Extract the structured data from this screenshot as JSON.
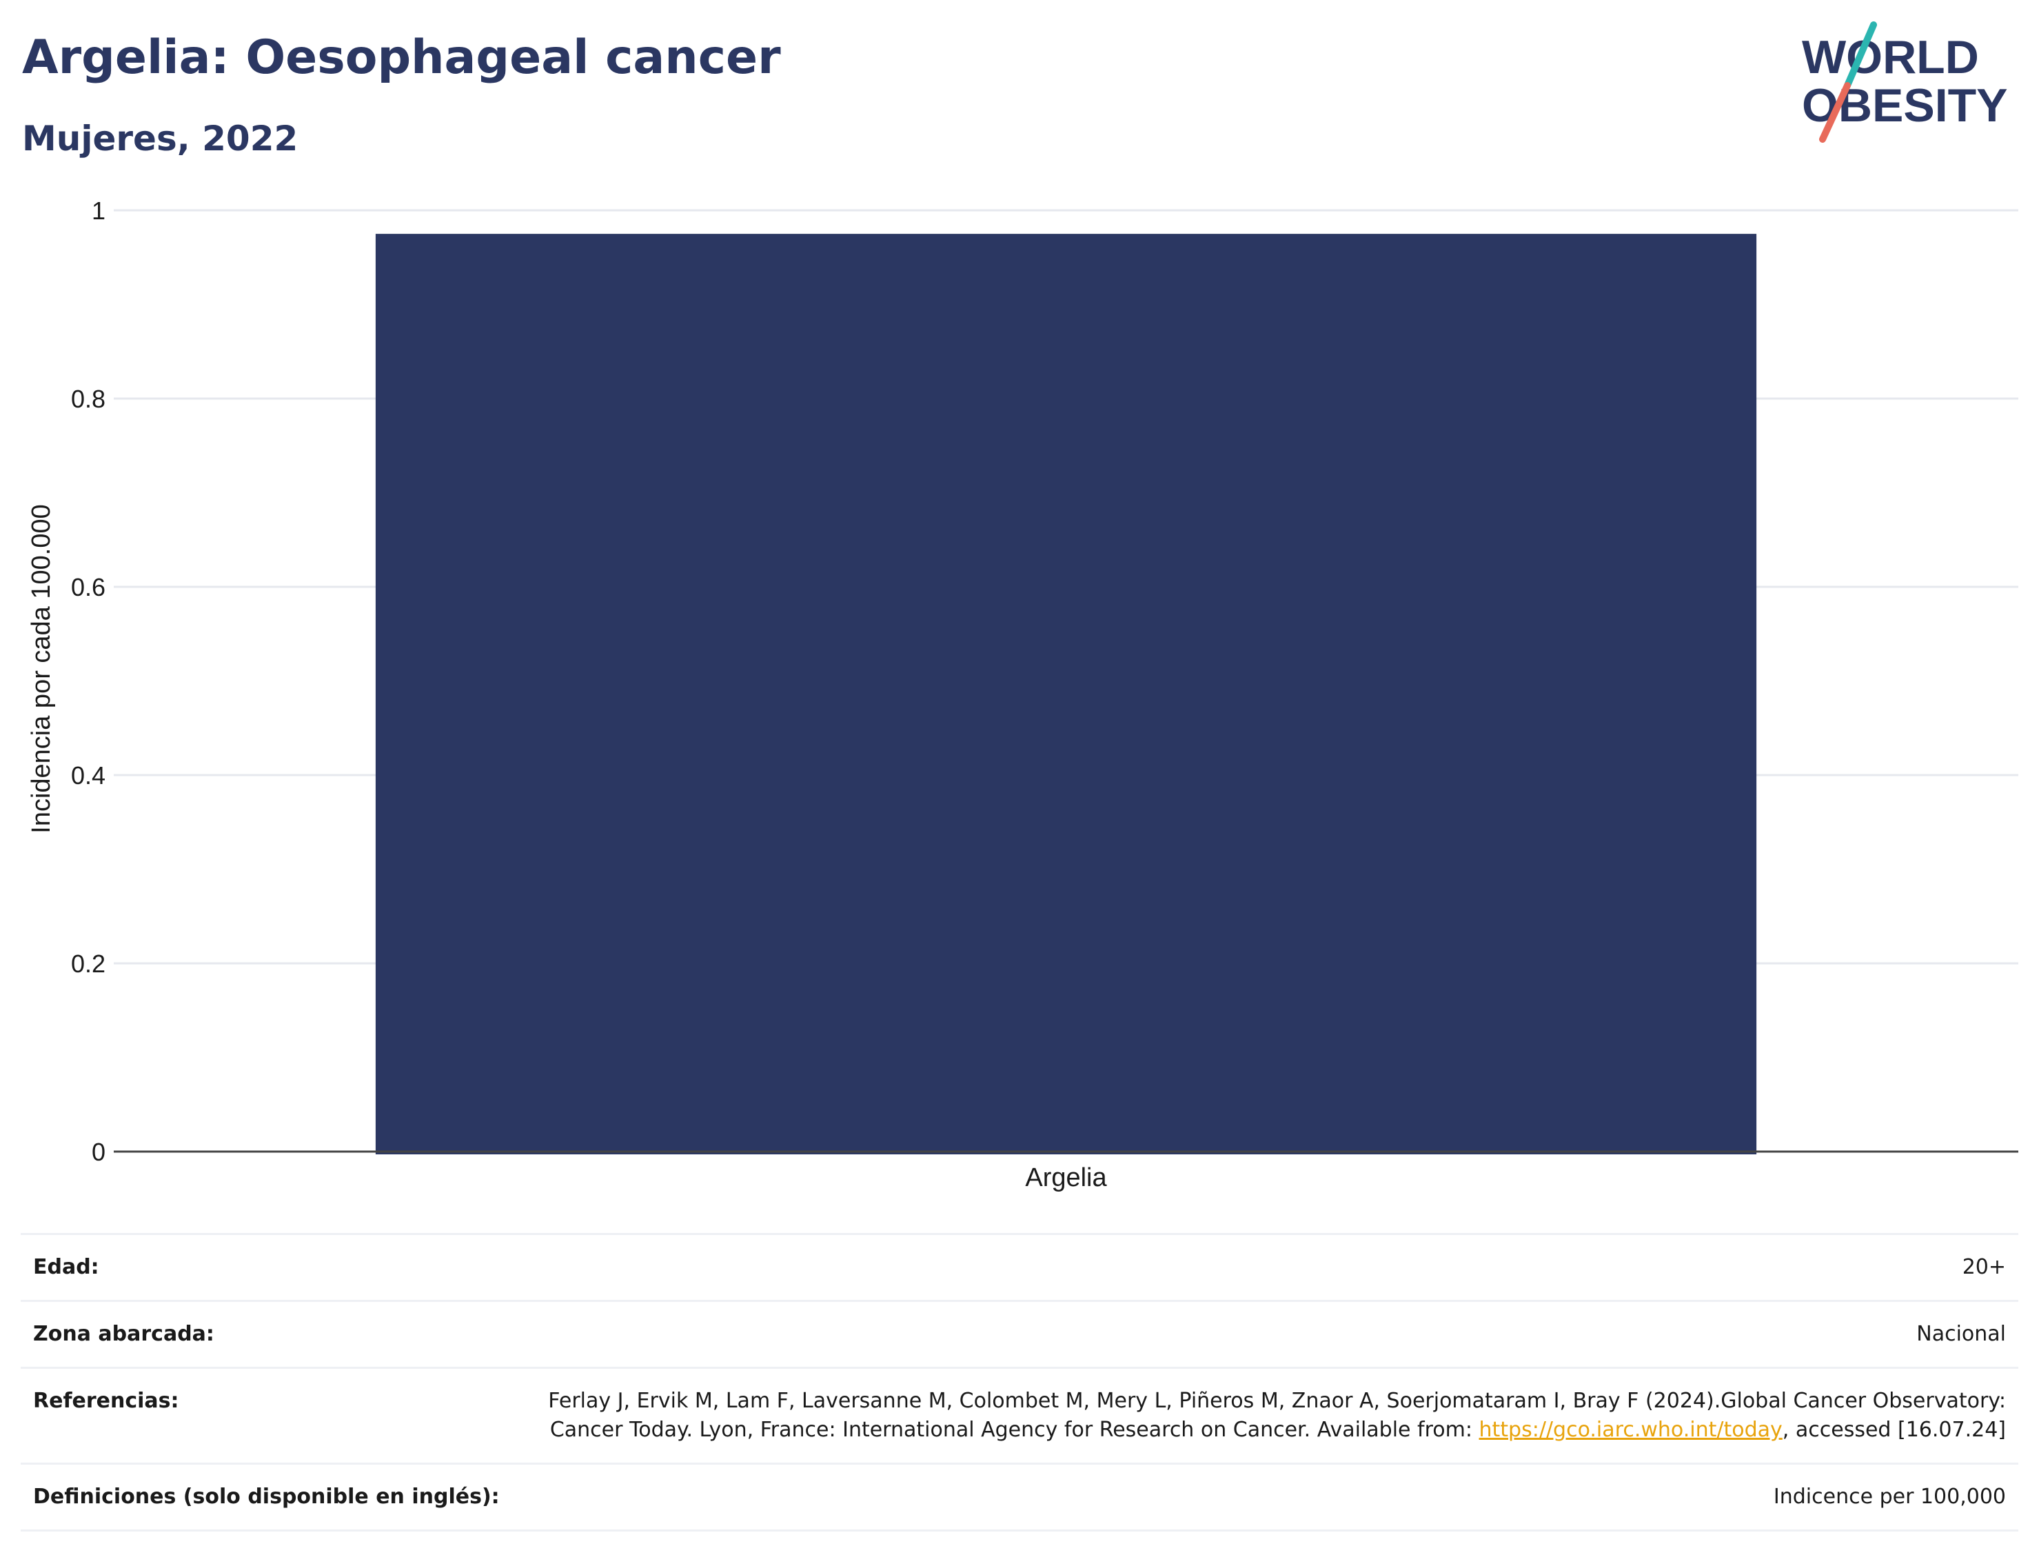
{
  "header": {
    "title": "Argelia: Oesophageal cancer",
    "subtitle": "Mujeres, 2022"
  },
  "logo": {
    "line1": "WORLD",
    "line2": "OBESITY",
    "colors": {
      "text": "#2b3762",
      "slash_top": "#2bb5b0",
      "slash_bottom": "#e86a5a"
    }
  },
  "chart_data": {
    "type": "bar",
    "categories": [
      "Argelia"
    ],
    "values": [
      0.975
    ],
    "title": "",
    "xlabel": "",
    "ylabel": "Incidencia por cada 100.000",
    "ylim": [
      0,
      1
    ],
    "yticks": [
      0,
      0.2,
      0.4,
      0.6,
      0.8,
      1
    ],
    "ytick_labels": [
      "0",
      "0.2",
      "0.4",
      "0.6",
      "0.8",
      "1"
    ],
    "grid": true,
    "bar_color": "#2b3762"
  },
  "meta": {
    "rows": [
      {
        "label": "Edad:",
        "value": "20+"
      },
      {
        "label": "Zona abarcada:",
        "value": "Nacional"
      },
      {
        "label": "Referencias:",
        "value_pre": "Ferlay J, Ervik M, Lam F, Laversanne M, Colombet M, Mery L, Piñeros M, Znaor A, Soerjomataram I, Bray F (2024).Global Cancer Observatory: Cancer Today. Lyon, France: International Agency for Research on Cancer. Available from: ",
        "link": "https://gco.iarc.who.int/today",
        "value_post": ", accessed [16.07.24]"
      },
      {
        "label": "Definiciones (solo disponible en inglés):",
        "value": "Indicence per 100,000"
      }
    ]
  }
}
